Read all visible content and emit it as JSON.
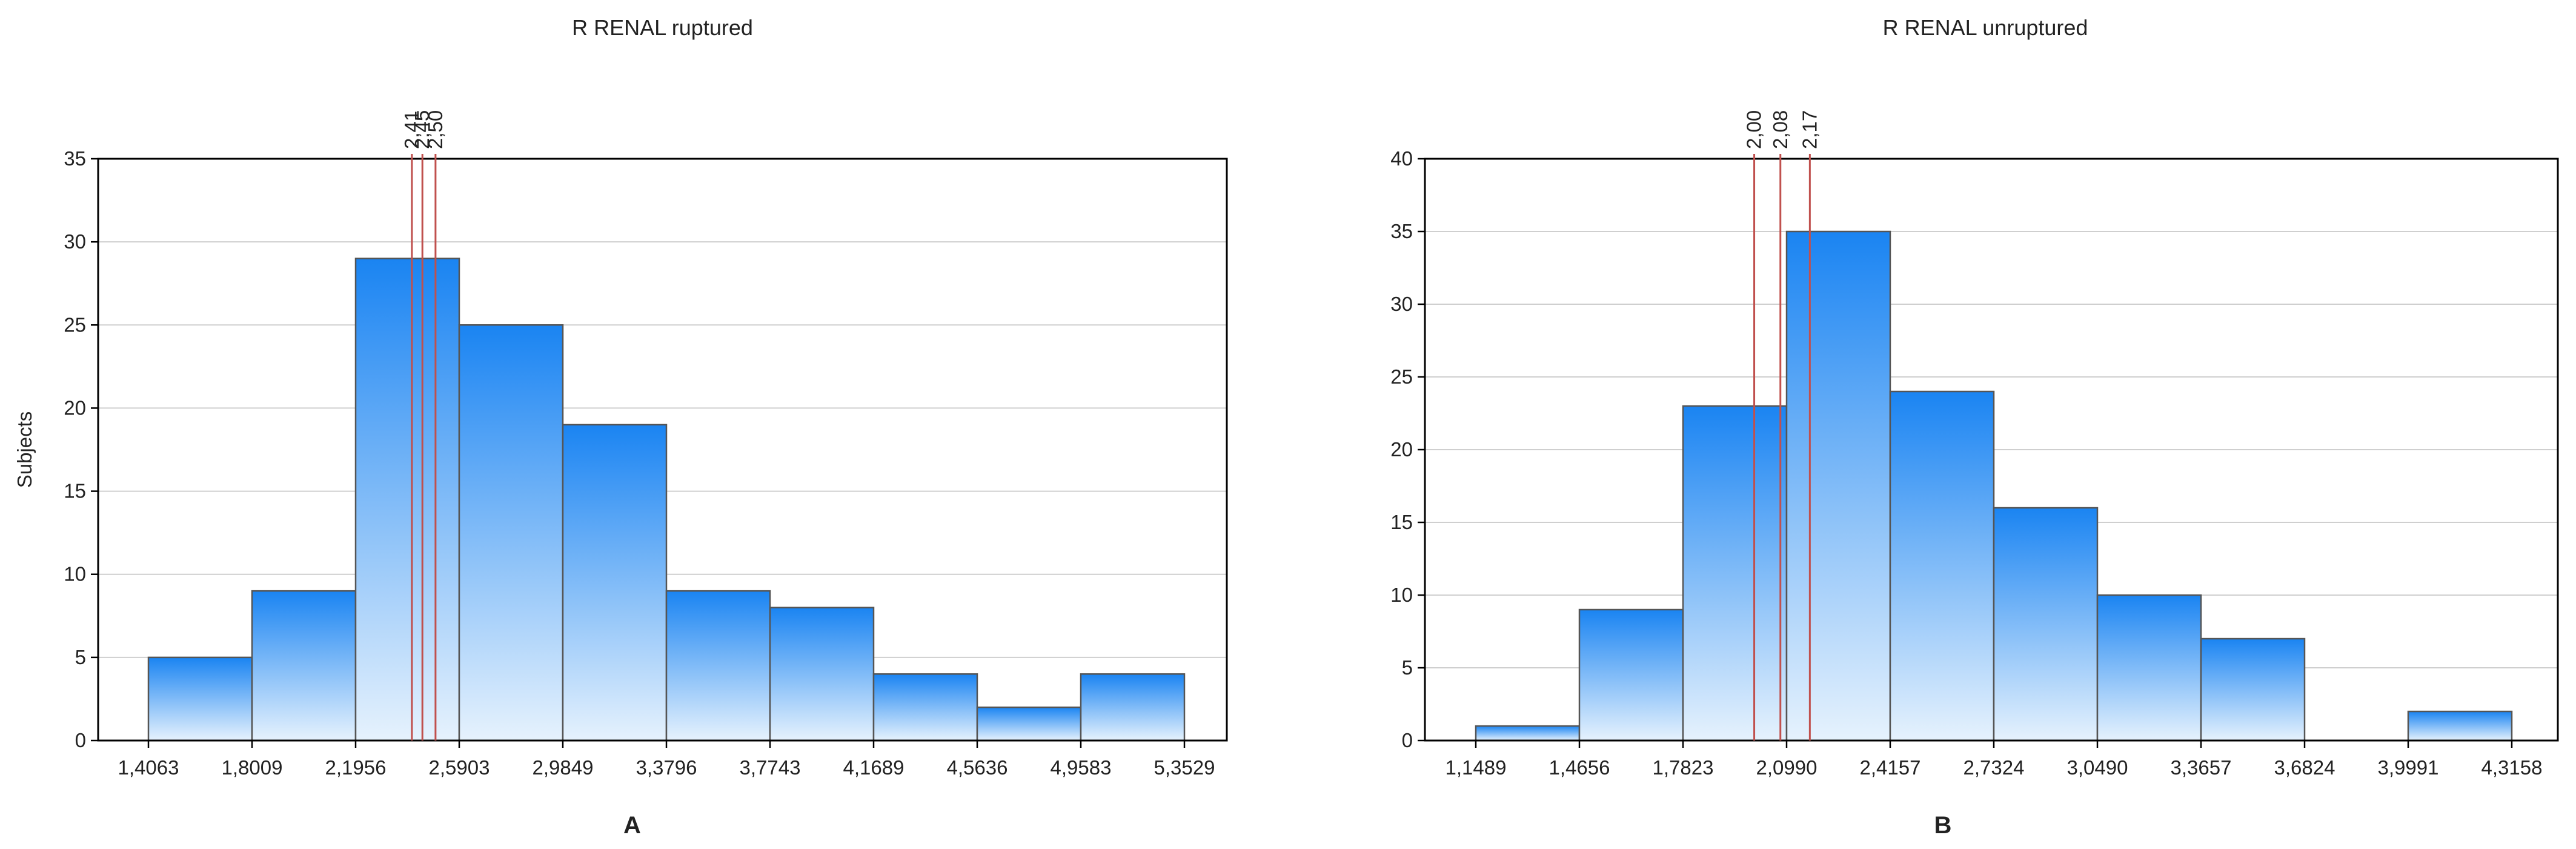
{
  "chart_data": [
    {
      "type": "bar",
      "title": "R  RENAL  ruptured",
      "panel_label": "A",
      "ylabel": "Subjects",
      "xlabel": "",
      "ylim": [
        0,
        35
      ],
      "yticks": [
        0,
        5,
        10,
        15,
        20,
        25,
        30,
        35
      ],
      "bin_edges": [
        "1,4063",
        "1,8009",
        "2,1956",
        "2,5903",
        "2,9849",
        "3,3796",
        "3,7743",
        "4,1689",
        "4,5636",
        "4,9583",
        "5,3529"
      ],
      "bin_edge_values": [
        1.4063,
        1.8009,
        2.1956,
        2.5903,
        2.9849,
        3.3796,
        3.7743,
        4.1689,
        4.5636,
        4.9583,
        5.3529
      ],
      "values": [
        5,
        9,
        29,
        25,
        19,
        9,
        8,
        4,
        2,
        4
      ],
      "markers": [
        {
          "label": "2,41",
          "value": 2.41
        },
        {
          "label": "2,45",
          "value": 2.45
        },
        {
          "label": "2,50",
          "value": 2.5
        }
      ],
      "grid": true,
      "bar_gradient": [
        "#1a84f2",
        "#e6f2fd"
      ]
    },
    {
      "type": "bar",
      "title": "R  RENAL  unruptured",
      "panel_label": "B",
      "ylabel": "",
      "xlabel": "",
      "ylim": [
        0,
        40
      ],
      "yticks": [
        0,
        5,
        10,
        15,
        20,
        25,
        30,
        35,
        40
      ],
      "bin_edges": [
        "1,1489",
        "1,4656",
        "1,7823",
        "2,0990",
        "2,4157",
        "2,7324",
        "3,0490",
        "3,3657",
        "3,6824",
        "3,9991",
        "4,3158"
      ],
      "bin_edge_values": [
        1.1489,
        1.4656,
        1.7823,
        2.099,
        2.4157,
        2.7324,
        3.049,
        3.3657,
        3.6824,
        3.9991,
        4.3158
      ],
      "values": [
        1,
        9,
        23,
        35,
        24,
        16,
        10,
        7,
        0,
        2
      ],
      "markers": [
        {
          "label": "2,00",
          "value": 2.0
        },
        {
          "label": "2,08",
          "value": 2.08
        },
        {
          "label": "2,17",
          "value": 2.17
        }
      ],
      "grid": true,
      "bar_gradient": [
        "#1a84f2",
        "#e6f2fd"
      ]
    }
  ]
}
